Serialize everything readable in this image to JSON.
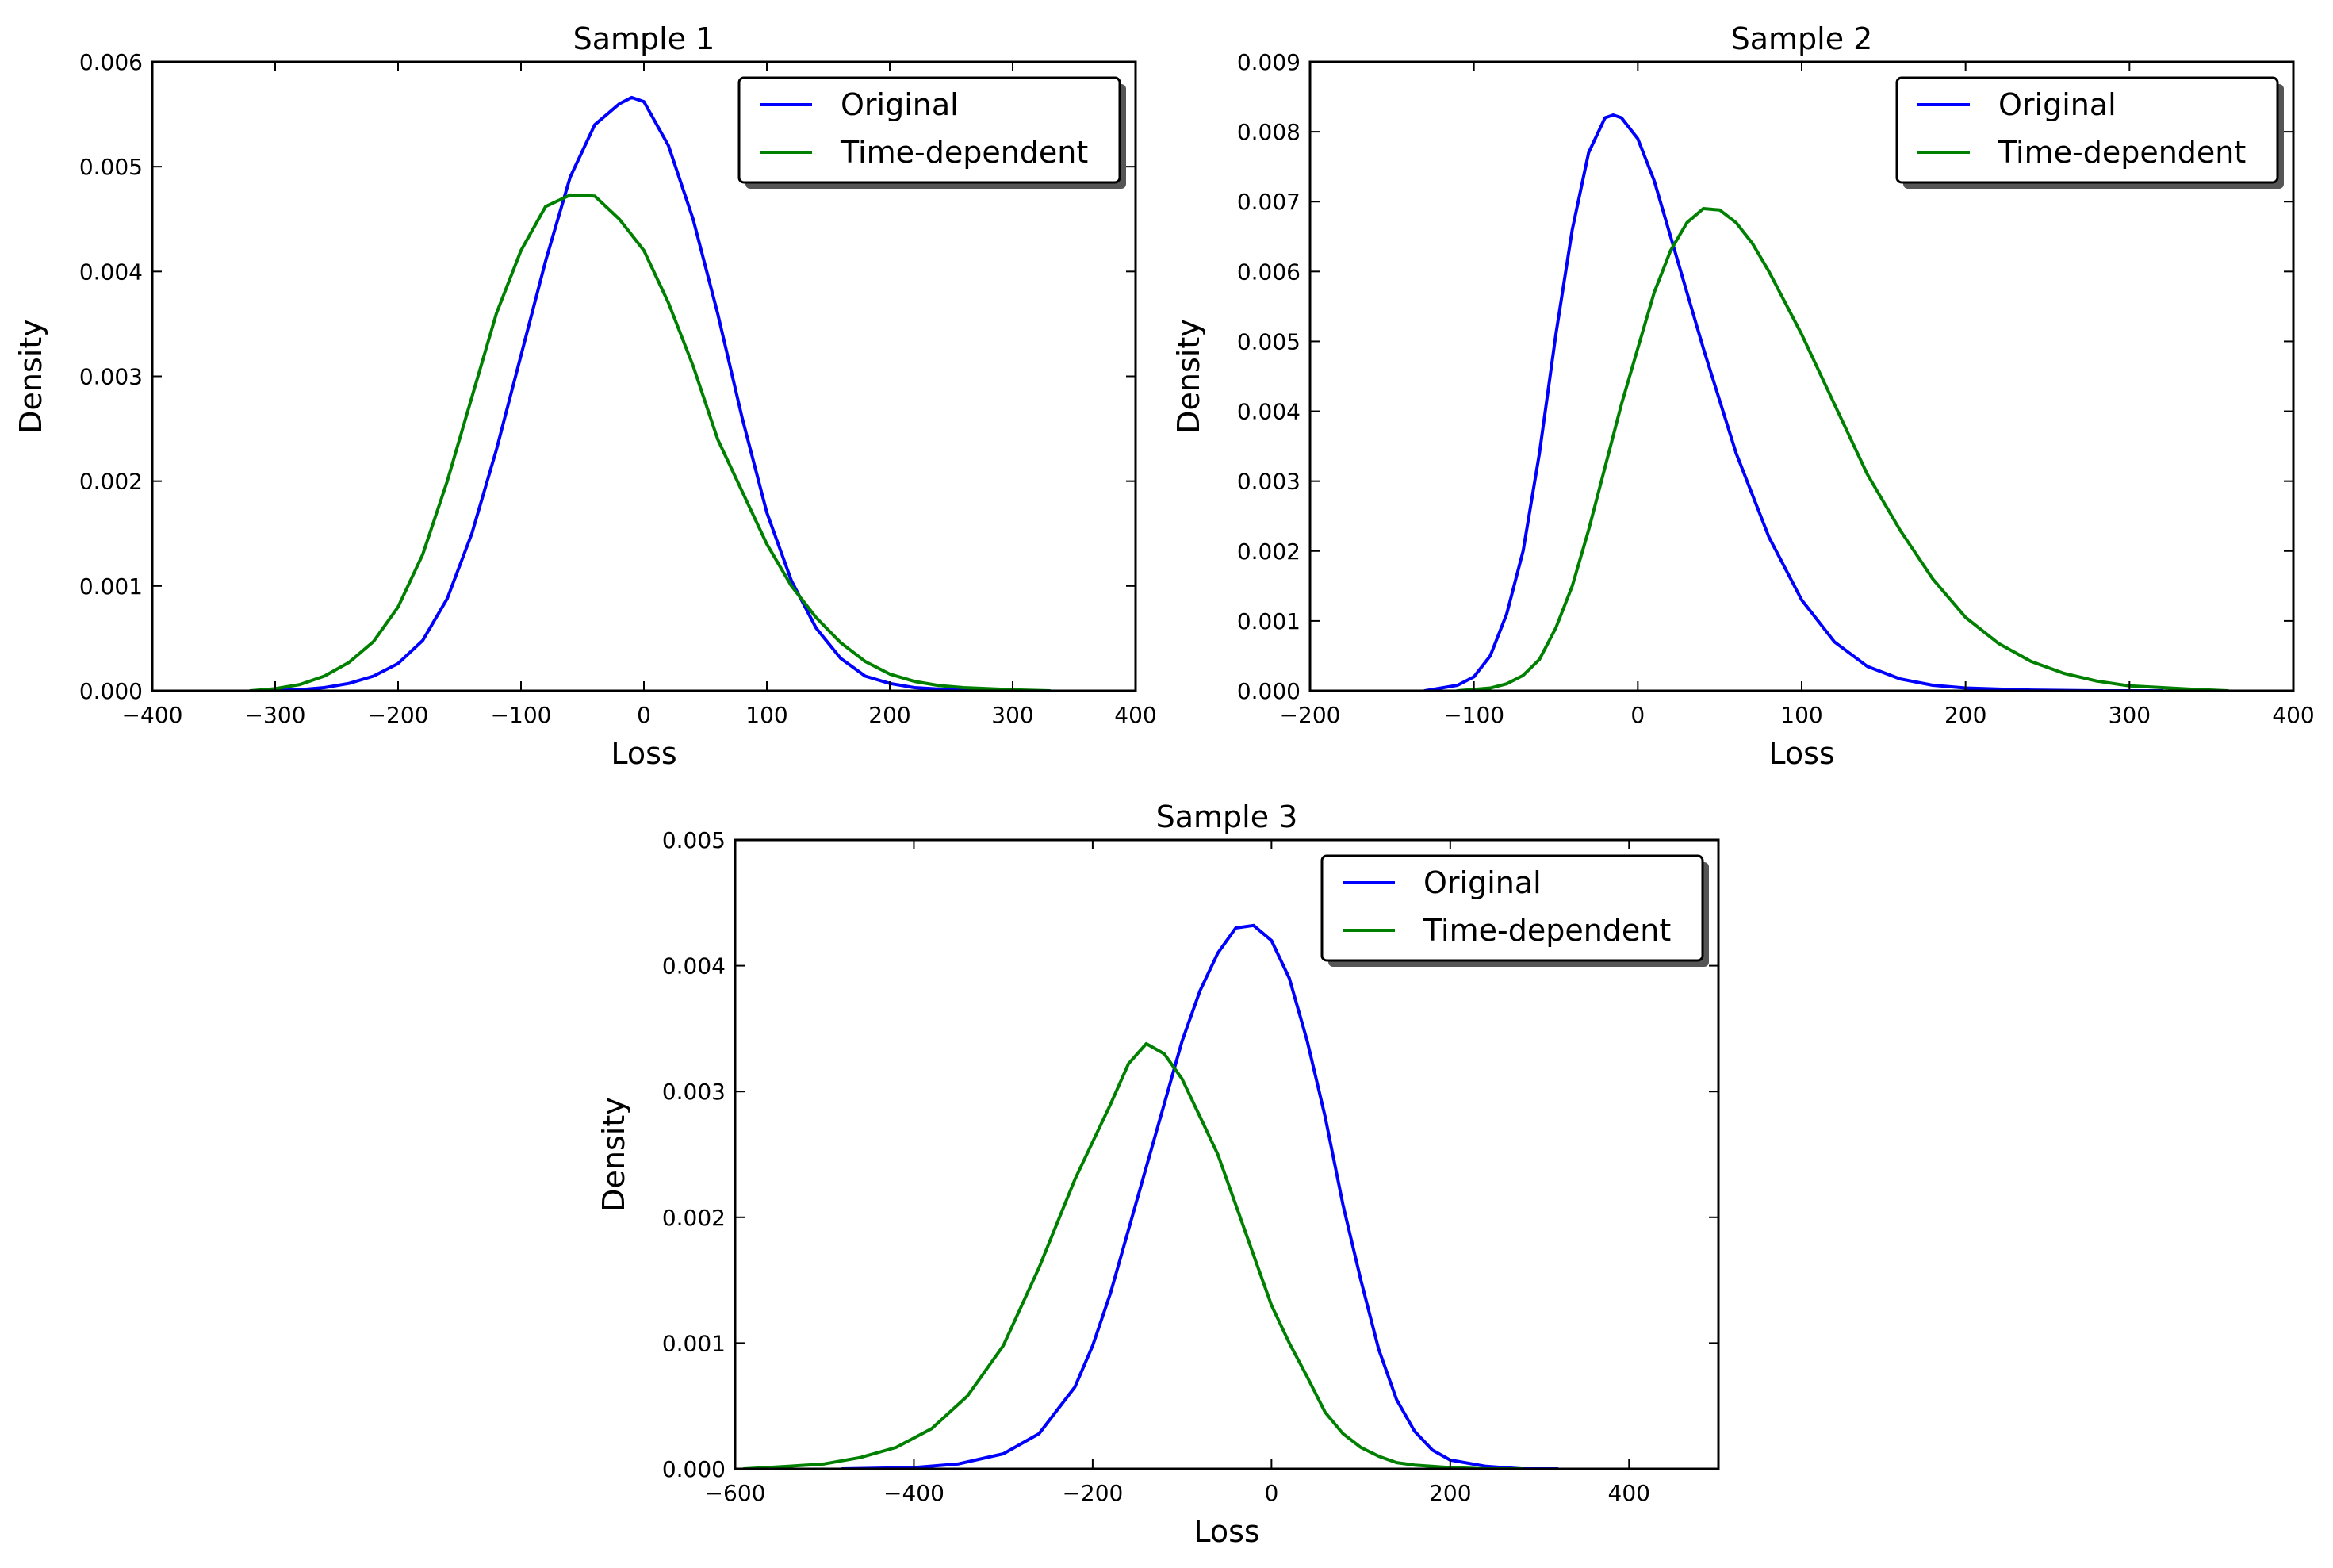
{
  "chart_data": [
    {
      "type": "line",
      "title": "Sample 1",
      "xlabel": "Loss",
      "ylabel": "Density",
      "xlim": [
        -400,
        400
      ],
      "ylim": [
        0,
        0.006
      ],
      "grid": false,
      "legend_position": "top-right",
      "xticks": [
        -400,
        -300,
        -200,
        -100,
        0,
        100,
        200,
        300,
        400
      ],
      "xtick_labels": [
        "−400",
        "−300",
        "−200",
        "−100",
        "0",
        "100",
        "200",
        "300",
        "400"
      ],
      "yticks": [
        0,
        0.001,
        0.002,
        0.003,
        0.004,
        0.005,
        0.006
      ],
      "ytick_labels": [
        "0.000",
        "0.001",
        "0.002",
        "0.003",
        "0.004",
        "0.005",
        "0.006"
      ],
      "series": [
        {
          "name": "Original",
          "color": "#0000ff",
          "x": [
            -320,
            -280,
            -260,
            -240,
            -220,
            -200,
            -180,
            -160,
            -140,
            -120,
            -100,
            -80,
            -60,
            -40,
            -20,
            -10,
            0,
            20,
            40,
            60,
            80,
            100,
            120,
            140,
            160,
            180,
            200,
            220,
            250,
            300,
            330
          ],
          "y": [
            0.0,
            1e-05,
            3e-05,
            7e-05,
            0.00014,
            0.00026,
            0.00048,
            0.00088,
            0.0015,
            0.0023,
            0.0032,
            0.0041,
            0.0049,
            0.0054,
            0.0056,
            0.00566,
            0.00562,
            0.0052,
            0.0045,
            0.0036,
            0.0026,
            0.0017,
            0.00105,
            0.0006,
            0.00031,
            0.00014,
            7e-05,
            3e-05,
            1e-05,
            0.0,
            0.0
          ]
        },
        {
          "name": "Time-dependent",
          "color": "#008000",
          "x": [
            -320,
            -300,
            -280,
            -260,
            -240,
            -220,
            -200,
            -180,
            -160,
            -140,
            -120,
            -100,
            -80,
            -60,
            -40,
            -20,
            0,
            20,
            40,
            60,
            80,
            100,
            120,
            140,
            160,
            180,
            200,
            220,
            240,
            260,
            300,
            330
          ],
          "y": [
            0.0,
            2e-05,
            6e-05,
            0.00014,
            0.00027,
            0.00047,
            0.0008,
            0.0013,
            0.002,
            0.0028,
            0.0036,
            0.0042,
            0.00462,
            0.00473,
            0.00472,
            0.0045,
            0.0042,
            0.0037,
            0.0031,
            0.0024,
            0.0019,
            0.0014,
            0.001,
            0.0007,
            0.00046,
            0.00028,
            0.00016,
            9e-05,
            5e-05,
            3e-05,
            1e-05,
            0.0
          ]
        }
      ]
    },
    {
      "type": "line",
      "title": "Sample 2",
      "xlabel": "Loss",
      "ylabel": "Density",
      "xlim": [
        -200,
        400
      ],
      "ylim": [
        0,
        0.009
      ],
      "grid": false,
      "legend_position": "top-right",
      "xticks": [
        -200,
        -100,
        0,
        100,
        200,
        300,
        400
      ],
      "xtick_labels": [
        "−200",
        "−100",
        "0",
        "100",
        "200",
        "300",
        "400"
      ],
      "yticks": [
        0,
        0.001,
        0.002,
        0.003,
        0.004,
        0.005,
        0.006,
        0.007,
        0.008,
        0.009
      ],
      "ytick_labels": [
        "0.000",
        "0.001",
        "0.002",
        "0.003",
        "0.004",
        "0.005",
        "0.006",
        "0.007",
        "0.008",
        "0.009"
      ],
      "series": [
        {
          "name": "Original",
          "color": "#0000ff",
          "x": [
            -130,
            -110,
            -100,
            -90,
            -80,
            -70,
            -60,
            -50,
            -40,
            -30,
            -20,
            -15,
            -10,
            0,
            10,
            20,
            30,
            40,
            60,
            80,
            100,
            120,
            140,
            160,
            180,
            200,
            240,
            280,
            320
          ],
          "y": [
            0.0,
            8e-05,
            0.0002,
            0.0005,
            0.0011,
            0.002,
            0.0034,
            0.0051,
            0.0066,
            0.0077,
            0.0082,
            0.00824,
            0.0082,
            0.0079,
            0.0073,
            0.0065,
            0.0057,
            0.0049,
            0.0034,
            0.0022,
            0.0013,
            0.0007,
            0.00035,
            0.00017,
            8e-05,
            4e-05,
            1e-05,
            0.0,
            0.0
          ]
        },
        {
          "name": "Time-dependent",
          "color": "#008000",
          "x": [
            -110,
            -90,
            -80,
            -70,
            -60,
            -50,
            -40,
            -30,
            -20,
            -10,
            0,
            10,
            20,
            30,
            40,
            50,
            60,
            70,
            80,
            100,
            120,
            140,
            160,
            180,
            200,
            220,
            240,
            260,
            280,
            300,
            340,
            360
          ],
          "y": [
            0.0,
            4e-05,
            0.0001,
            0.00022,
            0.00045,
            0.0009,
            0.0015,
            0.0023,
            0.0032,
            0.0041,
            0.0049,
            0.0057,
            0.0063,
            0.0067,
            0.0069,
            0.00688,
            0.0067,
            0.0064,
            0.006,
            0.0051,
            0.0041,
            0.0031,
            0.0023,
            0.0016,
            0.00105,
            0.00068,
            0.00042,
            0.00025,
            0.00014,
            7e-05,
            2e-05,
            0.0
          ]
        }
      ]
    },
    {
      "type": "line",
      "title": "Sample 3",
      "xlabel": "Loss",
      "ylabel": "Density",
      "xlim": [
        -600,
        500
      ],
      "ylim": [
        0,
        0.005
      ],
      "grid": false,
      "legend_position": "top-right",
      "xticks": [
        -600,
        -400,
        -200,
        0,
        200,
        400
      ],
      "xtick_labels": [
        "−600",
        "−400",
        "−200",
        "0",
        "200",
        "400"
      ],
      "yticks": [
        0,
        0.001,
        0.002,
        0.003,
        0.004,
        0.005
      ],
      "ytick_labels": [
        "0.000",
        "0.001",
        "0.002",
        "0.003",
        "0.004",
        "0.005"
      ],
      "series": [
        {
          "name": "Original",
          "color": "#0000ff",
          "x": [
            -480,
            -400,
            -350,
            -300,
            -260,
            -220,
            -200,
            -180,
            -160,
            -140,
            -120,
            -100,
            -80,
            -60,
            -40,
            -20,
            0,
            20,
            40,
            60,
            80,
            100,
            120,
            140,
            160,
            180,
            200,
            240,
            280,
            320
          ],
          "y": [
            0.0,
            1e-05,
            4e-05,
            0.00012,
            0.00028,
            0.00065,
            0.00098,
            0.0014,
            0.0019,
            0.0024,
            0.0029,
            0.0034,
            0.0038,
            0.0041,
            0.0043,
            0.00432,
            0.0042,
            0.0039,
            0.0034,
            0.0028,
            0.0021,
            0.0015,
            0.00095,
            0.00055,
            0.0003,
            0.00015,
            7e-05,
            2e-05,
            0.0,
            0.0
          ]
        },
        {
          "name": "Time-dependent",
          "color": "#008000",
          "x": [
            -590,
            -540,
            -500,
            -460,
            -420,
            -380,
            -340,
            -300,
            -260,
            -220,
            -180,
            -160,
            -140,
            -120,
            -100,
            -80,
            -60,
            -40,
            -20,
            0,
            20,
            40,
            60,
            80,
            100,
            120,
            140,
            160,
            200,
            240,
            280
          ],
          "y": [
            0.0,
            2e-05,
            4e-05,
            9e-05,
            0.00017,
            0.00032,
            0.00058,
            0.00098,
            0.0016,
            0.0023,
            0.0029,
            0.00322,
            0.00338,
            0.0033,
            0.0031,
            0.0028,
            0.0025,
            0.0021,
            0.0017,
            0.0013,
            0.001,
            0.00073,
            0.00045,
            0.00028,
            0.00017,
            0.0001,
            5e-05,
            3e-05,
            1e-05,
            0.0,
            0.0
          ]
        }
      ]
    }
  ]
}
